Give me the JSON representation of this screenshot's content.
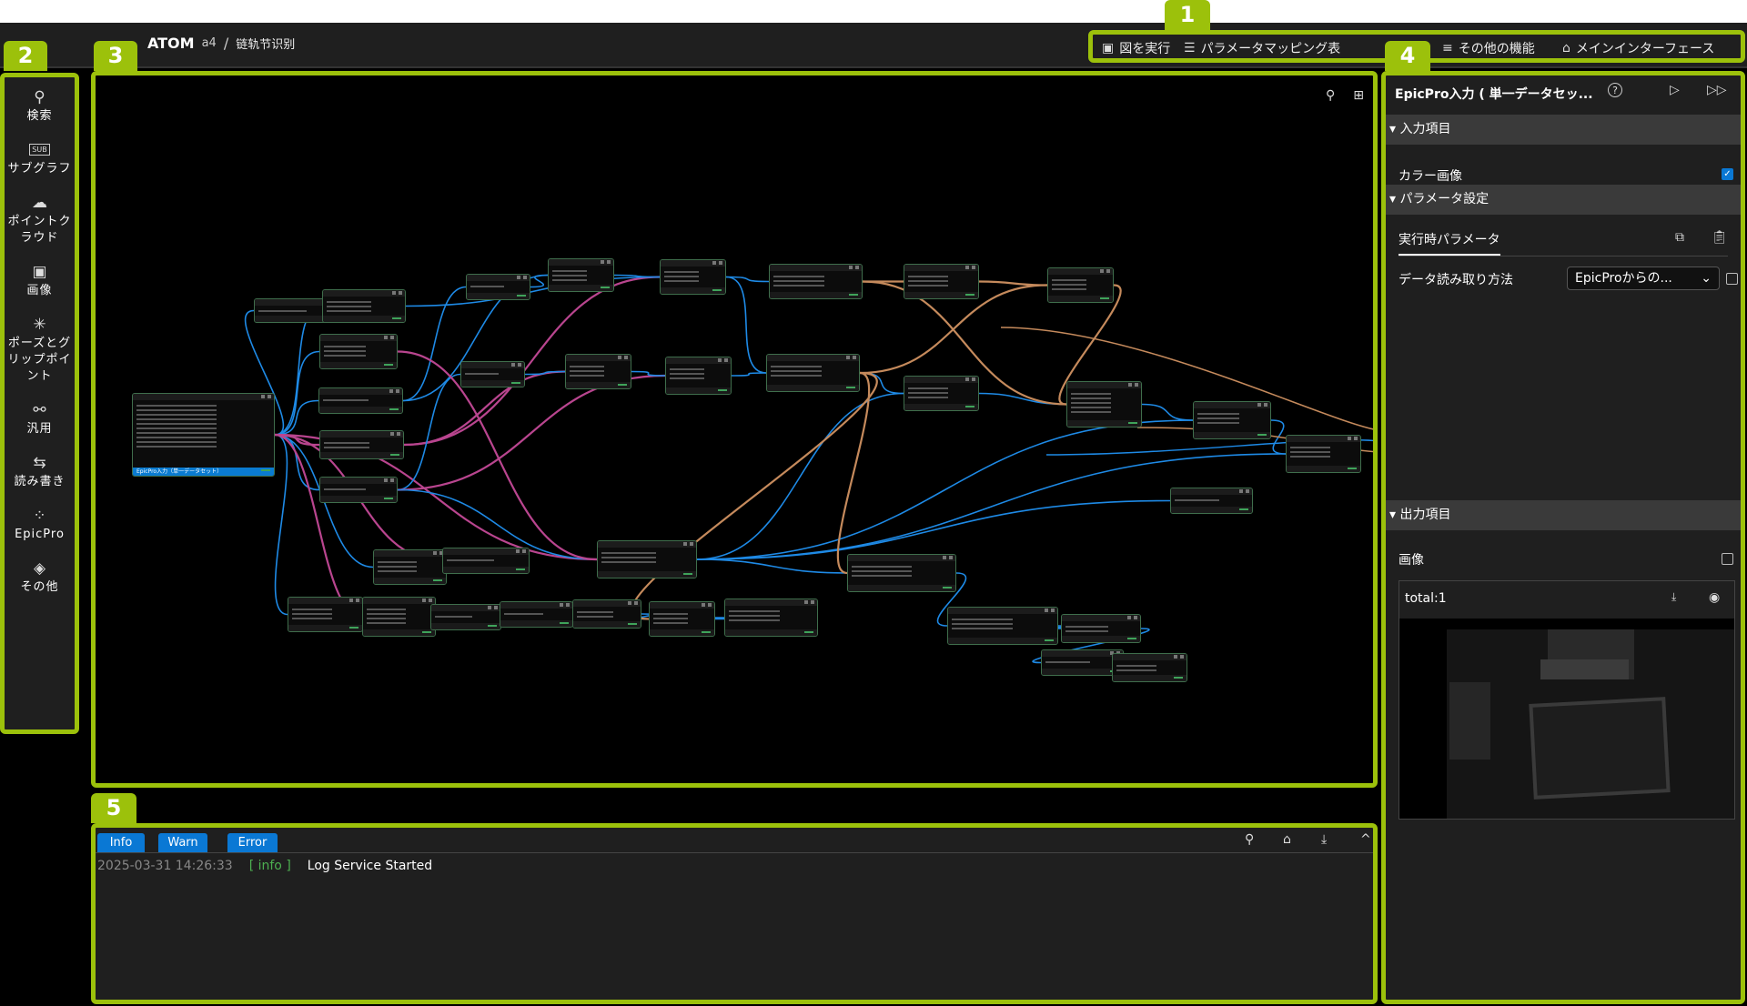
{
  "header": {
    "app_name": "ATOM",
    "version_fragment": "a4",
    "separator": "/",
    "project": "链轨节识别"
  },
  "badges": [
    "1",
    "2",
    "3",
    "4",
    "5"
  ],
  "toolbar": {
    "items": [
      {
        "label": "図を実行",
        "icon": "play-square-icon"
      },
      {
        "label": "パラメータマッピング表",
        "icon": "list-doc-icon"
      },
      {
        "label": "その他の機能",
        "icon": "menu-icon"
      },
      {
        "label": "メインインターフェース",
        "icon": "home-icon"
      }
    ]
  },
  "sidebar": {
    "items": [
      {
        "label": "検索",
        "icon": "search-icon"
      },
      {
        "label": "サブグラフ",
        "icon": "sub-icon"
      },
      {
        "label": "ポイントクラウド",
        "icon": "cloud-icon"
      },
      {
        "label": "画像",
        "icon": "image-icon"
      },
      {
        "label": "ポーズとグリップポイント",
        "icon": "pose-icon"
      },
      {
        "label": "汎用",
        "icon": "hierarchy-icon"
      },
      {
        "label": "読み書き",
        "icon": "read-write-icon"
      },
      {
        "label": "EpicPro",
        "icon": "grid-icon"
      },
      {
        "label": "その他",
        "icon": "layers-icon"
      }
    ]
  },
  "canvas": {
    "selected_node_label": "EpicPro入力（単一データセット）",
    "colors": {
      "blue": "#1e8ae6",
      "pink": "#b9458f",
      "orange": "#c58a5c",
      "node_border": "#3f6e4c"
    }
  },
  "right_panel": {
    "title": "EpicPro入力 ( 単一データセッ...",
    "input_section": "入力項目",
    "color_image_label": "カラー画像",
    "color_image_checked": true,
    "param_section": "パラメータ設定",
    "runtime_tab": "実行時パラメータ",
    "read_method_label": "データ読み取り方法",
    "read_method_value": "EpicProからの...",
    "read_method_checked": false,
    "output_section": "出力項目",
    "image_label": "画像",
    "image_checked": false,
    "card_title": "total:1"
  },
  "log": {
    "tabs": [
      "Info",
      "Warn",
      "Error"
    ],
    "entries": [
      {
        "time": "2025-03-31 14:26:33",
        "level": "[ info ]",
        "message": "Log Service Started"
      }
    ]
  }
}
